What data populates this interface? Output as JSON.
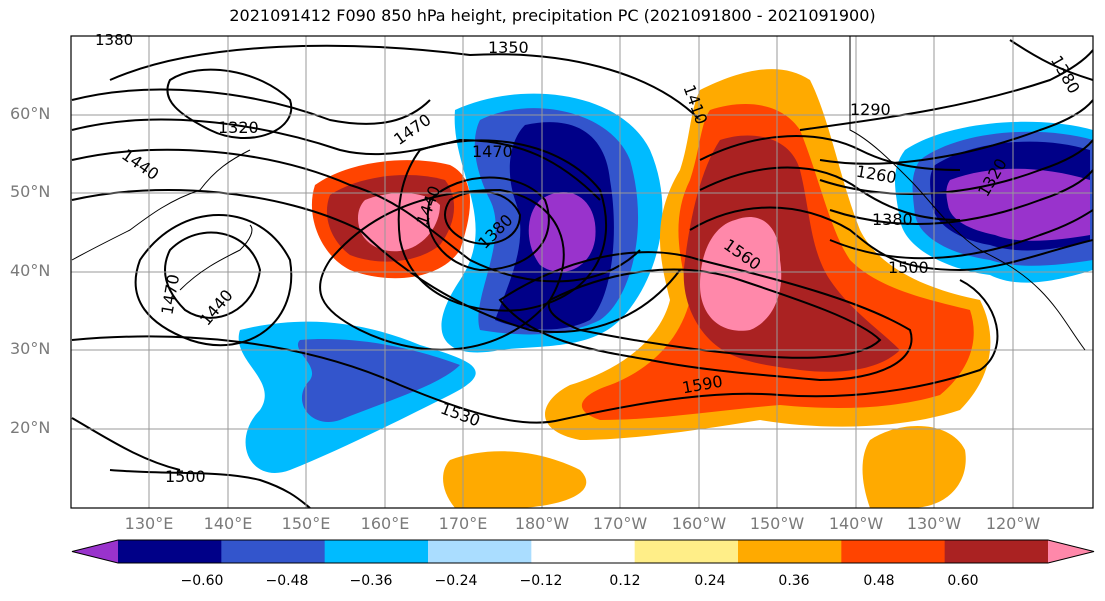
{
  "title": "2021091412 F090 850 hPa height, precipitation PC (2021091800 - 2021091900)",
  "lat_labels": [
    "60°N",
    "50°N",
    "40°N",
    "30°N",
    "20°N"
  ],
  "lon_labels": [
    "130°E",
    "140°E",
    "150°E",
    "160°E",
    "170°E",
    "180°W",
    "170°W",
    "160°W",
    "150°W",
    "140°W",
    "130°W",
    "120°W"
  ],
  "colorbar": {
    "colors": [
      "#9933cc",
      "#000088",
      "#3355cc",
      "#00bbff",
      "#aaddff",
      "#ffffff",
      "#ffee88",
      "#ffaa00",
      "#ff4400",
      "#aa2222",
      "#ff88aa"
    ],
    "labels": [
      "−0.60",
      "−0.48",
      "−0.36",
      "−0.24",
      "−0.12",
      "0.12",
      "0.24",
      "0.36",
      "0.48",
      "0.60"
    ]
  },
  "contour_labels": [
    "1380",
    "1350",
    "1320",
    "1440",
    "1470",
    "1470",
    "1440",
    "1380",
    "1440",
    "1470",
    "1290",
    "1260",
    "1380",
    "1500",
    "1560",
    "1590",
    "1530",
    "1500",
    "1380",
    "1320",
    "1410"
  ]
}
